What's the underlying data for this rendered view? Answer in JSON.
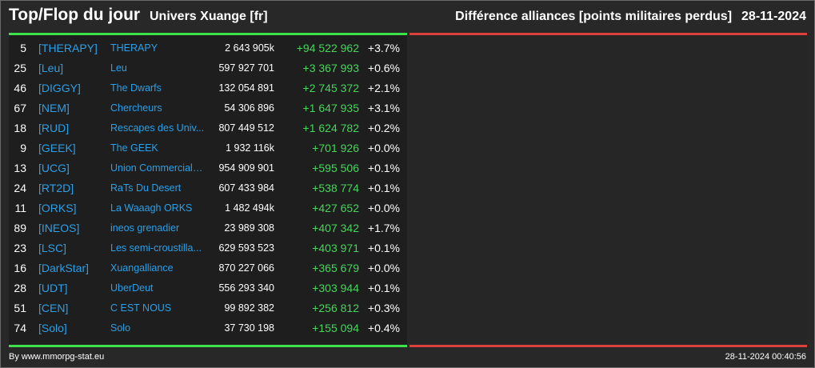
{
  "header": {
    "title": "Top/Flop du jour",
    "universe": "Univers Xuange [fr]",
    "subtitle": "Différence alliances [points militaires perdus]",
    "date": "28-11-2024"
  },
  "colors": {
    "accent_tag": "#2b9fe8",
    "positive": "#45d65a",
    "bar_top": "#3ee04b",
    "bar_flop": "#dd3f3a"
  },
  "top": [
    {
      "rank": "5",
      "tag": "[THERAPY]",
      "name": "THERAPY",
      "points": "2 643 905k",
      "diff": "+94 522 962",
      "pct": "+3.7%"
    },
    {
      "rank": "25",
      "tag": "[Leu]",
      "name": "Leu",
      "points": "597 927 701",
      "diff": "+3 367 993",
      "pct": "+0.6%"
    },
    {
      "rank": "46",
      "tag": "[DIGGY]",
      "name": "The Dwarfs",
      "points": "132 054 891",
      "diff": "+2 745 372",
      "pct": "+2.1%"
    },
    {
      "rank": "67",
      "tag": "[NEM]",
      "name": "Chercheurs",
      "points": "54 306 896",
      "diff": "+1 647 935",
      "pct": "+3.1%"
    },
    {
      "rank": "18",
      "tag": "[RUD]",
      "name": "Rescapes des Univ...",
      "points": "807 449 512",
      "diff": "+1 624 782",
      "pct": "+0.2%"
    },
    {
      "rank": "9",
      "tag": "[GEEK]",
      "name": "The GEEK",
      "points": "1 932 116k",
      "diff": "+701 926",
      "pct": "+0.0%"
    },
    {
      "rank": "13",
      "tag": "[UCG]",
      "name": "Union Commerciale...",
      "points": "954 909 901",
      "diff": "+595 506",
      "pct": "+0.1%"
    },
    {
      "rank": "24",
      "tag": "[RT2D]",
      "name": "RaTs Du Desert",
      "points": "607 433 984",
      "diff": "+538 774",
      "pct": "+0.1%"
    },
    {
      "rank": "11",
      "tag": "[ORKS]",
      "name": "La Waaagh ORKS",
      "points": "1 482 494k",
      "diff": "+427 652",
      "pct": "+0.0%"
    },
    {
      "rank": "89",
      "tag": "[INEOS]",
      "name": "ineos grenadier",
      "points": "23 989 308",
      "diff": "+407 342",
      "pct": "+1.7%"
    },
    {
      "rank": "23",
      "tag": "[LSC]",
      "name": "Les semi-croustilla...",
      "points": "629 593 523",
      "diff": "+403 971",
      "pct": "+0.1%"
    },
    {
      "rank": "16",
      "tag": "[DarkStar]",
      "name": "Xuangalliance",
      "points": "870 227 066",
      "diff": "+365 679",
      "pct": "+0.0%"
    },
    {
      "rank": "28",
      "tag": "[UDT]",
      "name": "UberDeut",
      "points": "556 293 340",
      "diff": "+303 944",
      "pct": "+0.1%"
    },
    {
      "rank": "51",
      "tag": "[CEN]",
      "name": "C EST NOUS",
      "points": "99 892 382",
      "diff": "+256 812",
      "pct": "+0.3%"
    },
    {
      "rank": "74",
      "tag": "[Solo]",
      "name": "Solo",
      "points": "37 730 198",
      "diff": "+155 094",
      "pct": "+0.4%"
    }
  ],
  "flop": [],
  "footer": {
    "credit": "By www.mmorpg-stat.eu",
    "timestamp": "28-11-2024 00:40:56"
  }
}
